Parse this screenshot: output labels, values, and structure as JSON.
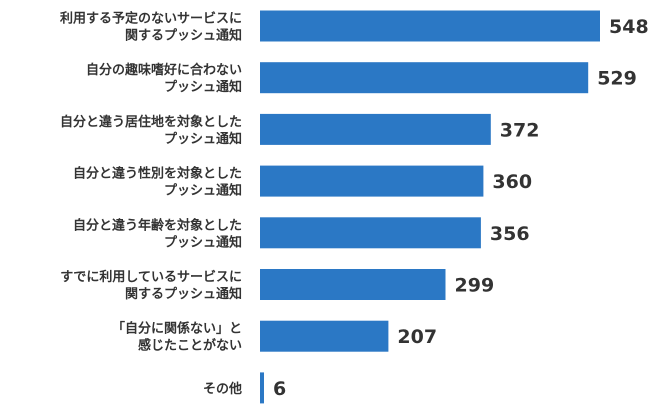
{
  "chart_data": {
    "type": "bar",
    "orientation": "horizontal",
    "categories": [
      [
        "利用する予定のないサービスに",
        "関するプッシュ通知"
      ],
      [
        "自分の趣味嗜好に合わない",
        "プッシュ通知"
      ],
      [
        "自分と違う居住地を対象とした",
        "プッシュ通知"
      ],
      [
        "自分と違う性別を対象とした",
        "プッシュ通知"
      ],
      [
        "自分と違う年齢を対象とした",
        "プッシュ通知"
      ],
      [
        "すでに利用しているサービスに",
        "関するプッシュ通知"
      ],
      [
        "「自分に関係ない」と",
        "感じたことがない"
      ],
      [
        "その他"
      ]
    ],
    "values": [
      548,
      529,
      372,
      360,
      356,
      299,
      207,
      6
    ],
    "value_labels": [
      "548",
      "529",
      "372",
      "360",
      "356",
      "299",
      "207",
      "6"
    ],
    "bar_color": "#2b78c5",
    "xlim": [
      0,
      600
    ],
    "grid": false,
    "legend": "none"
  }
}
